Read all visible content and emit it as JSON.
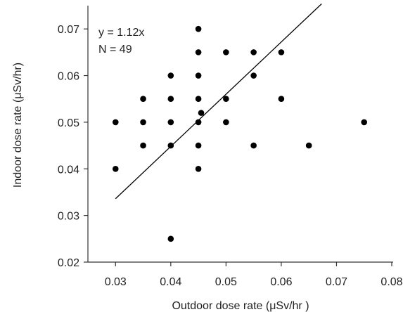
{
  "chart_data": {
    "type": "scatter",
    "title": "",
    "xlabel": "Outdoor dose rate (μSv/hr )",
    "ylabel": "Indoor dose rate (μSv/hr)",
    "xlim": [
      0.025,
      0.08
    ],
    "ylim": [
      0.02,
      0.075
    ],
    "xticks": [
      0.03,
      0.04,
      0.05,
      0.06,
      0.07,
      0.08
    ],
    "xtick_labels": [
      "0.03",
      "0.04",
      "0.05",
      "0.06",
      "0.07",
      "0.08"
    ],
    "yticks": [
      0.02,
      0.03,
      0.04,
      0.05,
      0.06,
      0.07
    ],
    "ytick_labels": [
      "0.02",
      "0.03",
      "0.04",
      "0.05",
      "0.06",
      "0.07"
    ],
    "grid": false,
    "annotations": [
      "y = 1.12x",
      "N = 49"
    ],
    "points": [
      {
        "x": 0.03,
        "y": 0.05
      },
      {
        "x": 0.03,
        "y": 0.04
      },
      {
        "x": 0.035,
        "y": 0.055
      },
      {
        "x": 0.035,
        "y": 0.05
      },
      {
        "x": 0.035,
        "y": 0.045
      },
      {
        "x": 0.04,
        "y": 0.06
      },
      {
        "x": 0.04,
        "y": 0.055
      },
      {
        "x": 0.04,
        "y": 0.05
      },
      {
        "x": 0.04,
        "y": 0.045
      },
      {
        "x": 0.04,
        "y": 0.025
      },
      {
        "x": 0.045,
        "y": 0.07
      },
      {
        "x": 0.045,
        "y": 0.065
      },
      {
        "x": 0.045,
        "y": 0.06
      },
      {
        "x": 0.045,
        "y": 0.055
      },
      {
        "x": 0.045,
        "y": 0.05
      },
      {
        "x": 0.045,
        "y": 0.045
      },
      {
        "x": 0.045,
        "y": 0.04
      },
      {
        "x": 0.0455,
        "y": 0.052
      },
      {
        "x": 0.05,
        "y": 0.065
      },
      {
        "x": 0.05,
        "y": 0.055
      },
      {
        "x": 0.05,
        "y": 0.05
      },
      {
        "x": 0.055,
        "y": 0.065
      },
      {
        "x": 0.055,
        "y": 0.06
      },
      {
        "x": 0.055,
        "y": 0.045
      },
      {
        "x": 0.06,
        "y": 0.065
      },
      {
        "x": 0.06,
        "y": 0.055
      },
      {
        "x": 0.065,
        "y": 0.045
      },
      {
        "x": 0.075,
        "y": 0.05
      }
    ],
    "fit_line": {
      "slope": 1.12,
      "x_start": 0.03,
      "x_end": 0.0673
    },
    "point_color": "#000000",
    "line_color": "#000000"
  }
}
